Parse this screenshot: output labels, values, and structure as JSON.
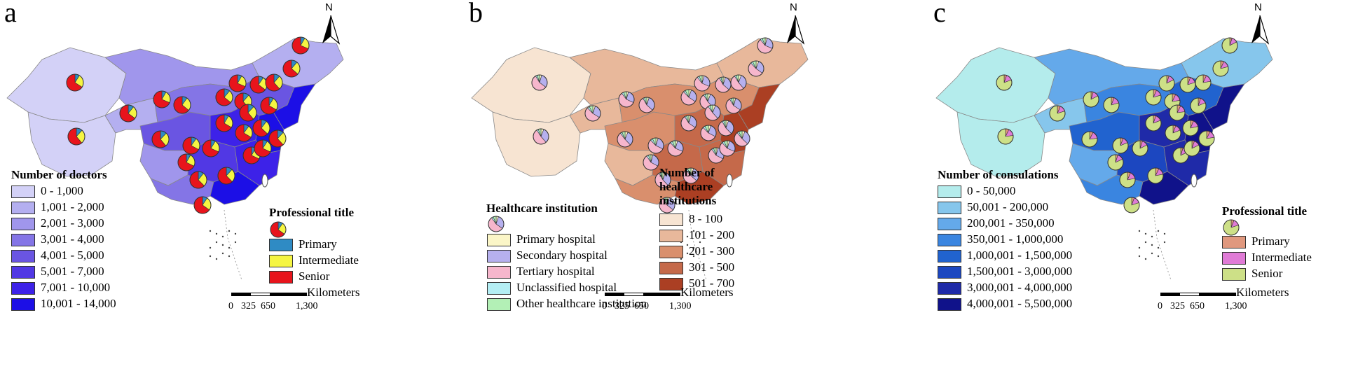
{
  "panels": [
    {
      "label": "a",
      "north_label": "N",
      "legend_title": "Number of doctors",
      "legend": [
        {
          "label": "0 - 1,000",
          "color": "#d3d1f7"
        },
        {
          "label": "1,001 - 2,000",
          "color": "#b4aff0"
        },
        {
          "label": "2,001 - 3,000",
          "color": "#a096ec"
        },
        {
          "label": "3,001 - 4,000",
          "color": "#8475e6"
        },
        {
          "label": "4,001 - 5,000",
          "color": "#6a55e2"
        },
        {
          "label": "5,001 - 7,000",
          "color": "#5138e4"
        },
        {
          "label": "7,001 - 10,000",
          "color": "#3d22e8"
        },
        {
          "label": "10,001 - 14,000",
          "color": "#1c0fe6"
        }
      ],
      "pie_title": "Professional title",
      "pie_legend": [
        {
          "label": "Primary",
          "color": "#2f8bc4"
        },
        {
          "label": "Intermediate",
          "color": "#f5f542"
        },
        {
          "label": "Senior",
          "color": "#e8141c"
        }
      ],
      "pie_weights": [
        0.1,
        0.25,
        0.65
      ],
      "scale": {
        "unit": "Kilometers",
        "ticks": [
          "0",
          "325",
          "650",
          "1,300"
        ]
      }
    },
    {
      "label": "b",
      "north_label": "N",
      "legend_title": "Number of healthcare institutions",
      "legend_title_lines": [
        "Number of",
        "healthcare",
        "institutions"
      ],
      "legend": [
        {
          "label": "8 - 100",
          "color": "#f7e4d2"
        },
        {
          "label": "101 - 200",
          "color": "#e8b89b"
        },
        {
          "label": "201 - 300",
          "color": "#d98f6d"
        },
        {
          "label": "301 - 500",
          "color": "#c5694a"
        },
        {
          "label": "501 - 700",
          "color": "#ab3f23"
        }
      ],
      "pie_title": "Healthcare institution",
      "pie_legend": [
        {
          "label": "Primary hospital",
          "color": "#fbf6c7"
        },
        {
          "label": "Secondary hospital",
          "color": "#b6b0ee"
        },
        {
          "label": "Tertiary hospital",
          "color": "#f6b6cc"
        },
        {
          "label": "Unclassified hospital",
          "color": "#b4eef4"
        },
        {
          "label": "Other healthcare institution",
          "color": "#b3f0b6"
        }
      ],
      "pie_weights": [
        0.05,
        0.3,
        0.55,
        0.04,
        0.06
      ],
      "scale": {
        "unit": "Kilometers",
        "ticks": [
          "0",
          "325",
          "650",
          "1,300"
        ]
      }
    },
    {
      "label": "c",
      "north_label": "N",
      "legend_title": "Number of consulations",
      "legend": [
        {
          "label": "0 - 50,000",
          "color": "#b4ecec"
        },
        {
          "label": "50,001 - 200,000",
          "color": "#86c6ec"
        },
        {
          "label": "200,001 - 350,000",
          "color": "#64a9ea"
        },
        {
          "label": "350,001 - 1,000,000",
          "color": "#3a85e0"
        },
        {
          "label": "1,000,001 - 1,500,000",
          "color": "#2163cf"
        },
        {
          "label": "1,500,001 - 3,000,000",
          "color": "#1c47c0"
        },
        {
          "label": "3,000,001 - 4,000,000",
          "color": "#1f2aa8"
        },
        {
          "label": "4,000,001 - 5,500,000",
          "color": "#10128a"
        }
      ],
      "pie_title": "Professional title",
      "pie_legend": [
        {
          "label": "Primary",
          "color": "#e0987e"
        },
        {
          "label": "Intermediate",
          "color": "#e07bd6"
        },
        {
          "label": "Senior",
          "color": "#cde087"
        }
      ],
      "pie_weights": [
        0.06,
        0.14,
        0.8
      ],
      "scale": {
        "unit": "Kilometers",
        "ticks": [
          "0",
          "325",
          "650",
          "1,300"
        ]
      }
    }
  ]
}
